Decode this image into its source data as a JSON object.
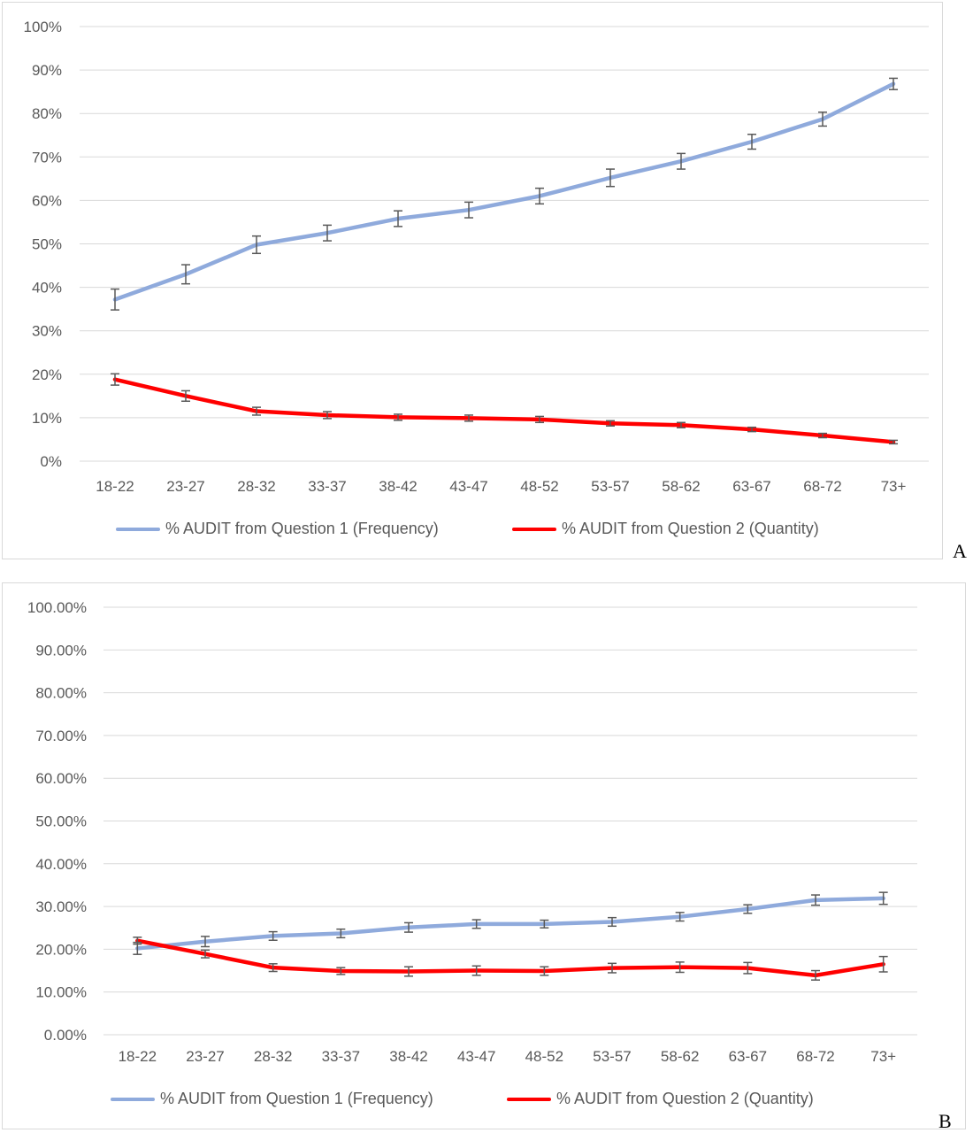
{
  "panels": [
    {
      "letter": "A"
    },
    {
      "letter": "B"
    }
  ],
  "legend": {
    "series1": "% AUDIT from Question 1 (Frequency)",
    "series2": "% AUDIT from Question 2 (Quantity)"
  },
  "colors": {
    "series1": "#8faadc",
    "series2": "#ff0000",
    "grid": "#d9d9d9",
    "text": "#595959",
    "errorbar": "#595959"
  },
  "chart_data": [
    {
      "type": "line",
      "panel": "A",
      "categories": [
        "18-22",
        "23-27",
        "28-32",
        "33-37",
        "38-42",
        "43-47",
        "48-52",
        "53-57",
        "58-62",
        "63-67",
        "68-72",
        "73+"
      ],
      "ylim": [
        0,
        1
      ],
      "yticks": [
        {
          "value": 0,
          "label": "0%"
        },
        {
          "value": 0.1,
          "label": "10%"
        },
        {
          "value": 0.2,
          "label": "20%"
        },
        {
          "value": 0.3,
          "label": "30%"
        },
        {
          "value": 0.4,
          "label": "40%"
        },
        {
          "value": 0.5,
          "label": "50%"
        },
        {
          "value": 0.6,
          "label": "60%"
        },
        {
          "value": 0.7,
          "label": "70%"
        },
        {
          "value": 0.8,
          "label": "80%"
        },
        {
          "value": 0.9,
          "label": "90%"
        },
        {
          "value": 1,
          "label": "100%"
        }
      ],
      "grid": true,
      "legend_position": "bottom",
      "series": [
        {
          "name": "% AUDIT from Question 1 (Frequency)",
          "color": "#8faadc",
          "values": [
            0.372,
            0.43,
            0.498,
            0.525,
            0.558,
            0.578,
            0.61,
            0.652,
            0.69,
            0.735,
            0.787,
            0.868
          ],
          "error": [
            0.024,
            0.022,
            0.02,
            0.018,
            0.018,
            0.018,
            0.018,
            0.02,
            0.018,
            0.017,
            0.016,
            0.013
          ]
        },
        {
          "name": "% AUDIT from Question 2 (Quantity)",
          "color": "#ff0000",
          "values": [
            0.188,
            0.15,
            0.115,
            0.106,
            0.101,
            0.099,
            0.096,
            0.087,
            0.083,
            0.073,
            0.059,
            0.044
          ],
          "error": [
            0.013,
            0.012,
            0.009,
            0.008,
            0.007,
            0.007,
            0.007,
            0.006,
            0.006,
            0.005,
            0.005,
            0.004
          ]
        }
      ]
    },
    {
      "type": "line",
      "panel": "B",
      "categories": [
        "18-22",
        "23-27",
        "28-32",
        "33-37",
        "38-42",
        "43-47",
        "48-52",
        "53-57",
        "58-62",
        "63-67",
        "68-72",
        "73+"
      ],
      "ylim": [
        0,
        1
      ],
      "yticks": [
        {
          "value": 0,
          "label": "0.00%"
        },
        {
          "value": 0.1,
          "label": "10.00%"
        },
        {
          "value": 0.2,
          "label": "20.00%"
        },
        {
          "value": 0.3,
          "label": "30.00%"
        },
        {
          "value": 0.4,
          "label": "40.00%"
        },
        {
          "value": 0.5,
          "label": "50.00%"
        },
        {
          "value": 0.6,
          "label": "60.00%"
        },
        {
          "value": 0.7,
          "label": "70.00%"
        },
        {
          "value": 0.8,
          "label": "80.00%"
        },
        {
          "value": 0.9,
          "label": "90.00%"
        },
        {
          "value": 1,
          "label": "100.00%"
        }
      ],
      "grid": true,
      "legend_position": "bottom",
      "series": [
        {
          "name": "% AUDIT from Question 1 (Frequency)",
          "color": "#8faadc",
          "values": [
            0.202,
            0.218,
            0.231,
            0.237,
            0.251,
            0.259,
            0.259,
            0.264,
            0.276,
            0.294,
            0.315,
            0.319
          ],
          "error": [
            0.014,
            0.012,
            0.01,
            0.01,
            0.011,
            0.01,
            0.009,
            0.01,
            0.01,
            0.01,
            0.012,
            0.014
          ]
        },
        {
          "name": "% AUDIT from Question 2 (Quantity)",
          "color": "#ff0000",
          "values": [
            0.22,
            0.189,
            0.157,
            0.149,
            0.148,
            0.15,
            0.149,
            0.156,
            0.158,
            0.156,
            0.139,
            0.165
          ],
          "error": [
            0.008,
            0.009,
            0.009,
            0.008,
            0.011,
            0.011,
            0.01,
            0.011,
            0.012,
            0.013,
            0.011,
            0.018
          ]
        }
      ]
    }
  ]
}
